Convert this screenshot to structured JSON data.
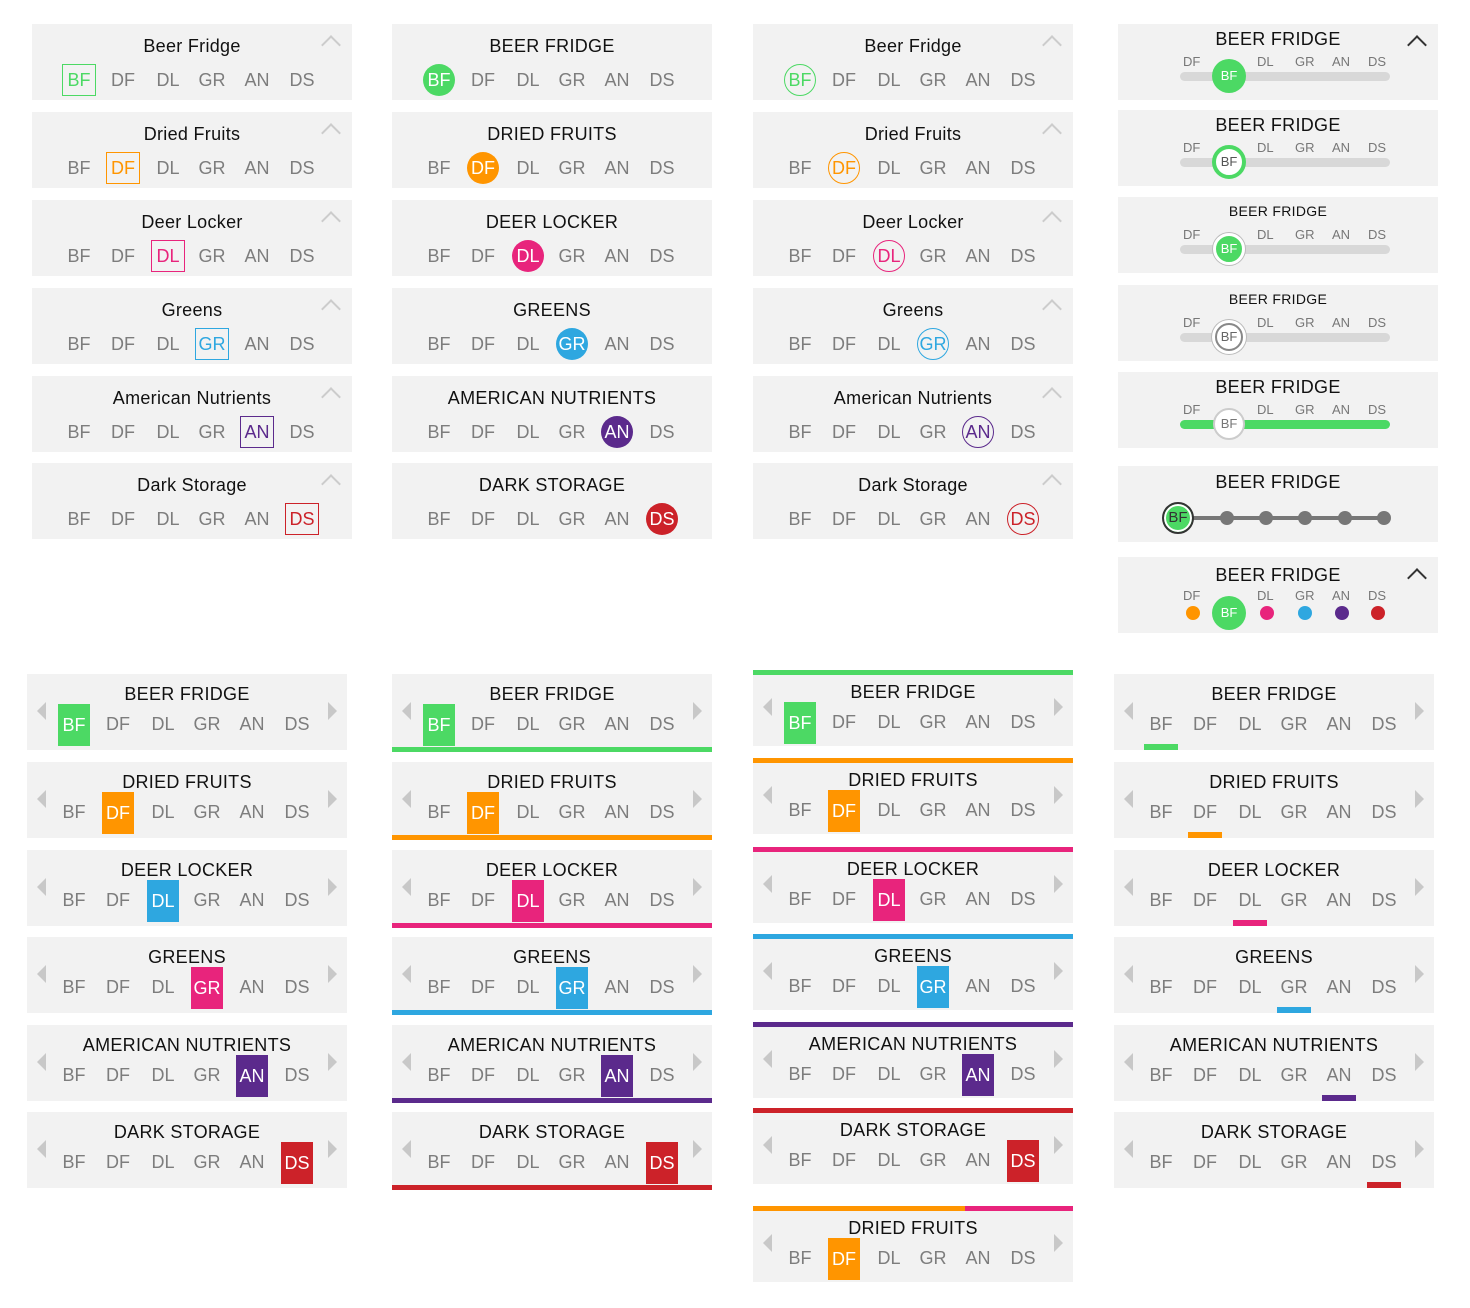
{
  "tabs": [
    "BF",
    "DF",
    "DL",
    "GR",
    "AN",
    "DS"
  ],
  "rows": [
    {
      "title": "Beer Fridge",
      "upper": "BEER FRIDGE",
      "color": "#4cd964"
    },
    {
      "title": "Dried Fruits",
      "upper": "DRIED FRUITS",
      "color": "#ff9500"
    },
    {
      "title": "Deer Locker",
      "upper": "DEER LOCKER",
      "color": "#e8247c"
    },
    {
      "title": "Greens",
      "upper": "GREENS",
      "color": "#2ea7e0"
    },
    {
      "title": "American Nutrients",
      "upper": "AMERICAN NUTRIENTS",
      "color": "#5b2a8c"
    },
    {
      "title": "Dark Storage",
      "upper": "DARK STORAGE",
      "color": "#cc2229"
    }
  ],
  "variant_c3_greens_highlight_color": "#e8247c",
  "slider_variants": {
    "title": "BEER FRIDGE",
    "selected": "BF",
    "gray_color": "#c8c8c8",
    "line_color": "#777777"
  },
  "extra_card": {
    "title": "DRIED FRUITS",
    "selected_index": 1,
    "top_bar_colors": [
      "#ff9500",
      "#e8247c"
    ]
  }
}
